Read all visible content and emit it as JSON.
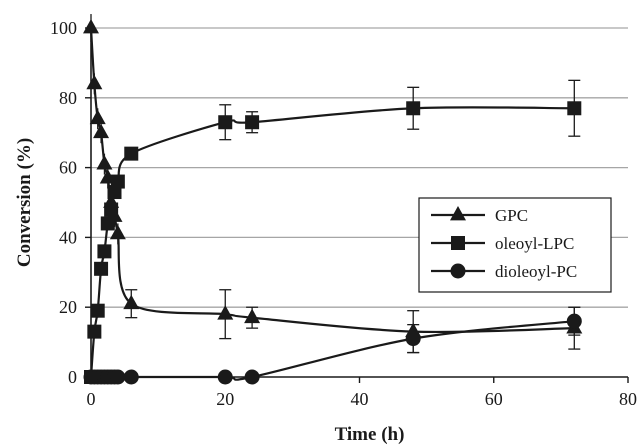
{
  "chart_data": {
    "type": "line",
    "xlabel": "Time (h)",
    "ylabel": "Conversion (%)",
    "xlim": [
      0,
      80
    ],
    "ylim": [
      0,
      100
    ],
    "xticks": [
      0,
      20,
      40,
      60,
      80
    ],
    "yticks": [
      0,
      20,
      40,
      60,
      80,
      100
    ],
    "grid": "horizontal",
    "legend_position": "right",
    "colors": {
      "series": "#1a1a1a",
      "grid": "#a6a6a6",
      "axis": "#1a1a1a"
    },
    "series": [
      {
        "name": "GPC",
        "marker": "triangle",
        "x": [
          0,
          0.5,
          1,
          1.5,
          2,
          2.5,
          3,
          3.5,
          4,
          6,
          20,
          24,
          48,
          72
        ],
        "y": [
          100,
          84,
          74,
          70,
          61,
          57,
          50,
          46,
          41,
          21,
          18,
          17,
          13,
          14
        ],
        "yerr": [
          4,
          3,
          3,
          3,
          3,
          3,
          3,
          3,
          3,
          4,
          7,
          3,
          6,
          6
        ]
      },
      {
        "name": "oleoyl-LPC",
        "marker": "square",
        "x": [
          0,
          0.5,
          1,
          1.5,
          2,
          2.5,
          3,
          3.5,
          4,
          6,
          20,
          24,
          48,
          72
        ],
        "y": [
          0,
          13,
          19,
          31,
          36,
          44,
          48,
          53,
          56,
          64,
          73,
          73,
          77,
          77
        ],
        "yerr": [
          0,
          2,
          2,
          2,
          2,
          2,
          2,
          2,
          2,
          1,
          5,
          3,
          6,
          8
        ]
      },
      {
        "name": "dioleoyl-PC",
        "marker": "circle",
        "x": [
          0,
          0.5,
          1,
          1.5,
          2,
          2.5,
          3,
          3.5,
          4,
          6,
          20,
          24,
          48,
          72
        ],
        "y": [
          0,
          0,
          0,
          0,
          0,
          0,
          0,
          0,
          0,
          0,
          0,
          0,
          11,
          16
        ],
        "yerr": [
          0,
          0,
          0,
          0,
          0,
          0,
          0,
          0,
          0,
          0,
          0,
          0,
          4,
          4
        ]
      }
    ]
  }
}
